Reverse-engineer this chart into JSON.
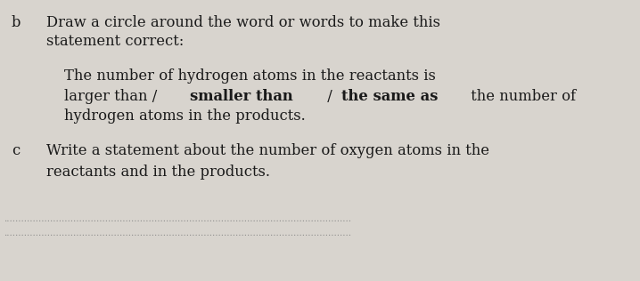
{
  "bg_color": "#d8d4ce",
  "text_color": "#1a1a1a",
  "label_b": "b",
  "label_c": "c",
  "line1_b": "Draw a circle around the word or words to make this",
  "line2_b": "statement correct:",
  "line1_p": "The number of hydrogen atoms in the reactants is",
  "line2_p_seg1": "larger than / ",
  "line2_p_seg2": "smaller than",
  "line2_p_seg3": " / ",
  "line2_p_seg4": "the same as",
  "line2_p_seg5": " the number of",
  "line3_p": "hydrogen atoms in the products.",
  "line1_c": "Write a statement about the number of oxygen atoms in the",
  "line2_c": "reactants and in the products.",
  "font_size": 11.8,
  "font_size_label": 11.8
}
